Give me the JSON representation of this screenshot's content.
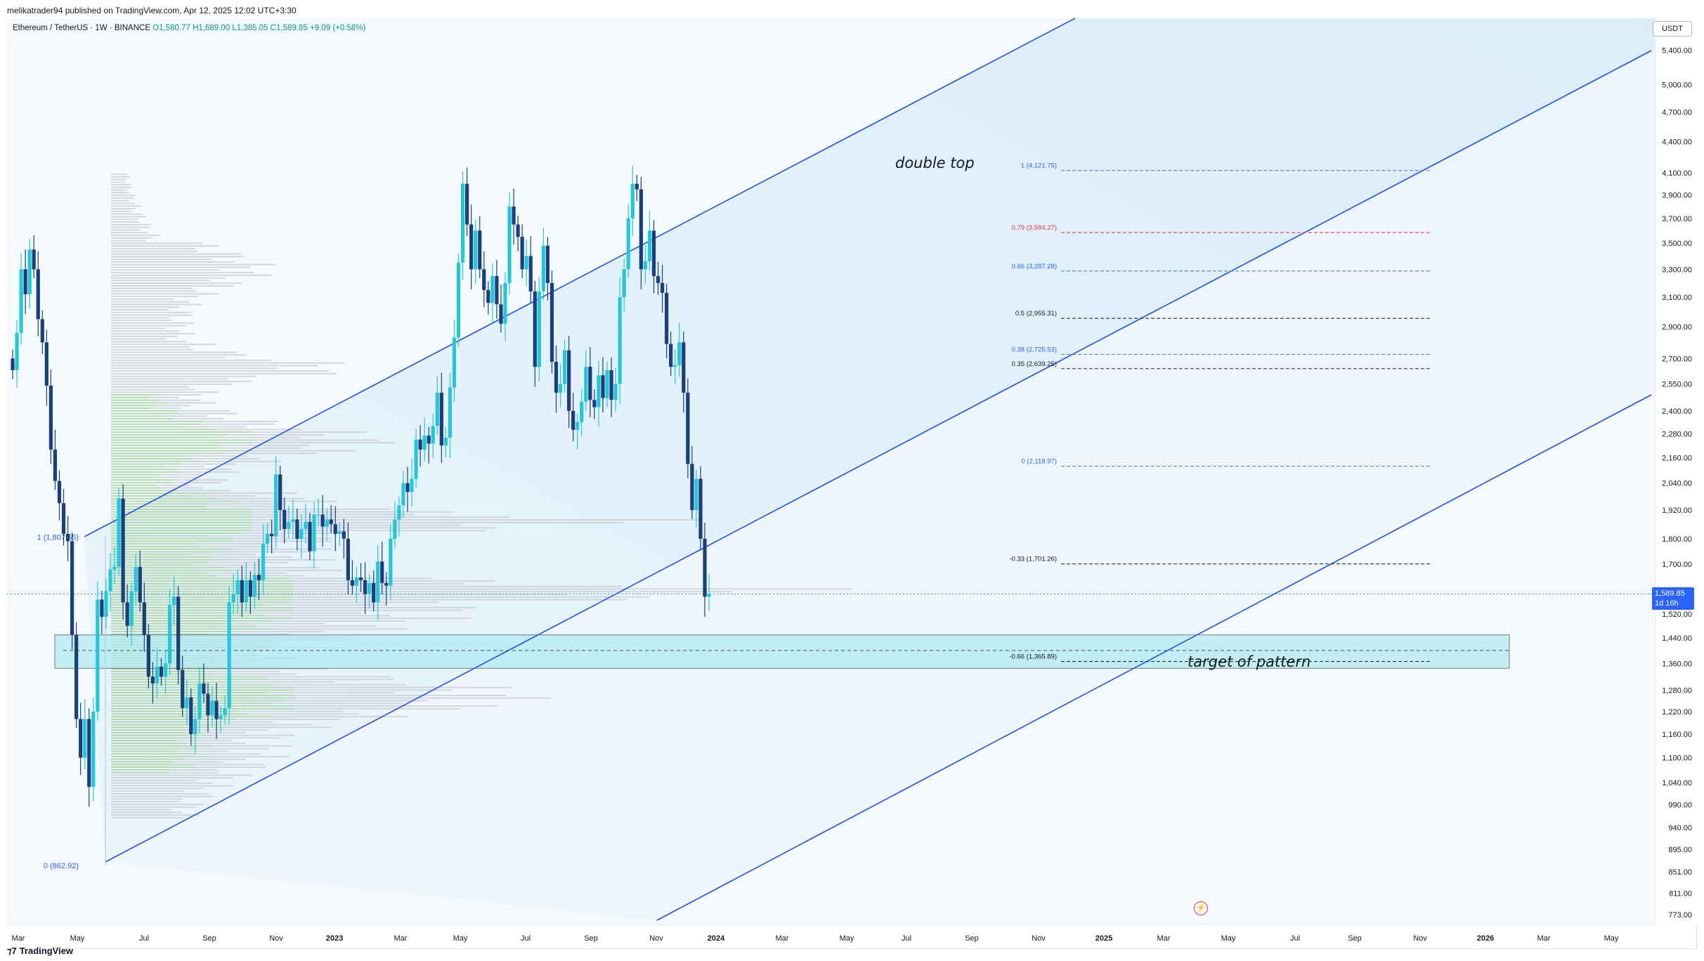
{
  "publisher": "melikatrader94 published on TradingView.com, Apr 12, 2025 12:02 UTC+3:30",
  "symbol": {
    "name": "Ethereum / TetherUS · 1W · BINANCE",
    "open": "O1,580.77",
    "high": "H1,689.00",
    "low": "L1,385.05",
    "close": "C1,589.85",
    "change": "+9.09 (+0.58%)"
  },
  "currency": "USDT",
  "price_badge": {
    "price": "1,589.85",
    "countdown": "1d 16h"
  },
  "annotations": {
    "double_top": "double top",
    "target": "target of pattern"
  },
  "footer": "TradingView",
  "colors": {
    "up": "#26c6da",
    "down": "#1a3f7a",
    "channel": "#1e53e5",
    "zone": "#b2ebf2",
    "fib_red": "#f23645",
    "fib_dark": "#131722"
  },
  "chart_data": {
    "type": "candlestick",
    "scale": "log",
    "ylim": [
      760,
      5600
    ],
    "x_labels": [
      "Mar",
      "May",
      "Jul",
      "Sep",
      "Nov",
      "2023",
      "Mar",
      "May",
      "Jul",
      "Sep",
      "Nov",
      "2024",
      "Mar",
      "May",
      "Jul",
      "Sep",
      "Nov",
      "2025",
      "Mar",
      "May",
      "Jul",
      "Sep",
      "Nov",
      "2026",
      "Mar",
      "May"
    ],
    "y_ticks": [
      "773.00",
      "811.00",
      "851.00",
      "895.00",
      "940.00",
      "990.00",
      "1,040.00",
      "1,100.00",
      "1,160.00",
      "1,220.00",
      "1,280.00",
      "1,360.00",
      "1,440.00",
      "1,520.00",
      "1,600.00",
      "1,700.00",
      "1,800.00",
      "1,920.00",
      "2,040.00",
      "2,160.00",
      "2,280.00",
      "2,400.00",
      "2,550.00",
      "2,700.00",
      "2,900.00",
      "3,100.00",
      "3,300.00",
      "3,500.00",
      "3,700.00",
      "3,900.00",
      "4,100.00",
      "4,400.00",
      "4,700.00",
      "5,000.00",
      "5,400.00"
    ],
    "candles_open_close": [
      [
        2700,
        2630
      ],
      [
        2630,
        2860
      ],
      [
        2860,
        3300
      ],
      [
        3300,
        3120
      ],
      [
        3120,
        3450
      ],
      [
        3450,
        3300
      ],
      [
        3300,
        2950
      ],
      [
        2950,
        2800
      ],
      [
        2800,
        2540
      ],
      [
        2540,
        2200
      ],
      [
        2200,
        2050
      ],
      [
        2050,
        1950
      ],
      [
        1950,
        1820
      ],
      [
        1820,
        1790
      ],
      [
        1790,
        1450
      ],
      [
        1450,
        1200
      ],
      [
        1200,
        1100
      ],
      [
        1100,
        1200
      ],
      [
        1200,
        1030
      ],
      [
        1030,
        1220
      ],
      [
        1220,
        1570
      ],
      [
        1570,
        1510
      ],
      [
        1510,
        1600
      ],
      [
        1600,
        1680
      ],
      [
        1680,
        1690
      ],
      [
        1690,
        1970
      ],
      [
        1970,
        1560
      ],
      [
        1560,
        1480
      ],
      [
        1480,
        1600
      ],
      [
        1600,
        1690
      ],
      [
        1690,
        1560
      ],
      [
        1560,
        1450
      ],
      [
        1450,
        1320
      ],
      [
        1320,
        1300
      ],
      [
        1300,
        1350
      ],
      [
        1350,
        1320
      ],
      [
        1320,
        1360
      ],
      [
        1360,
        1550
      ],
      [
        1550,
        1580
      ],
      [
        1580,
        1340
      ],
      [
        1340,
        1230
      ],
      [
        1230,
        1260
      ],
      [
        1260,
        1160
      ],
      [
        1160,
        1200
      ],
      [
        1200,
        1300
      ],
      [
        1300,
        1270
      ],
      [
        1270,
        1210
      ],
      [
        1210,
        1250
      ],
      [
        1250,
        1200
      ],
      [
        1200,
        1210
      ],
      [
        1210,
        1230
      ],
      [
        1230,
        1560
      ],
      [
        1560,
        1590
      ],
      [
        1590,
        1640
      ],
      [
        1640,
        1560
      ],
      [
        1560,
        1640
      ],
      [
        1640,
        1580
      ],
      [
        1580,
        1660
      ],
      [
        1660,
        1640
      ],
      [
        1640,
        1780
      ],
      [
        1780,
        1820
      ],
      [
        1820,
        1810
      ],
      [
        1810,
        2080
      ],
      [
        2080,
        1920
      ],
      [
        1920,
        1840
      ],
      [
        1840,
        1870
      ],
      [
        1870,
        1880
      ],
      [
        1880,
        1800
      ],
      [
        1800,
        1840
      ],
      [
        1840,
        1870
      ],
      [
        1870,
        1750
      ],
      [
        1750,
        1900
      ],
      [
        1900,
        1900
      ],
      [
        1900,
        1850
      ],
      [
        1850,
        1880
      ],
      [
        1880,
        1860
      ],
      [
        1860,
        1820
      ],
      [
        1820,
        1830
      ],
      [
        1830,
        1800
      ],
      [
        1800,
        1640
      ],
      [
        1640,
        1620
      ],
      [
        1620,
        1650
      ],
      [
        1650,
        1640
      ],
      [
        1640,
        1590
      ],
      [
        1590,
        1630
      ],
      [
        1630,
        1560
      ],
      [
        1560,
        1710
      ],
      [
        1710,
        1630
      ],
      [
        1630,
        1620
      ],
      [
        1620,
        1800
      ],
      [
        1800,
        1880
      ],
      [
        1880,
        1940
      ],
      [
        1940,
        2040
      ],
      [
        2040,
        2000
      ],
      [
        2000,
        2060
      ],
      [
        2060,
        2250
      ],
      [
        2250,
        2200
      ],
      [
        2200,
        2270
      ],
      [
        2270,
        2230
      ],
      [
        2230,
        2320
      ],
      [
        2320,
        2500
      ],
      [
        2500,
        2220
      ],
      [
        2220,
        2260
      ],
      [
        2260,
        2530
      ],
      [
        2530,
        2830
      ],
      [
        2830,
        3350
      ],
      [
        3350,
        4000
      ],
      [
        4000,
        3650
      ],
      [
        3650,
        3300
      ],
      [
        3300,
        3600
      ],
      [
        3600,
        3300
      ],
      [
        3300,
        3150
      ],
      [
        3150,
        3060
      ],
      [
        3060,
        3250
      ],
      [
        3250,
        3050
      ],
      [
        3050,
        2920
      ],
      [
        2920,
        3200
      ],
      [
        3200,
        3800
      ],
      [
        3800,
        3650
      ],
      [
        3650,
        3550
      ],
      [
        3550,
        3300
      ],
      [
        3300,
        3400
      ],
      [
        3400,
        3140
      ],
      [
        3140,
        2650
      ],
      [
        2650,
        3140
      ],
      [
        3140,
        3480
      ],
      [
        3480,
        3200
      ],
      [
        3200,
        2680
      ],
      [
        2680,
        2500
      ],
      [
        2500,
        2550
      ],
      [
        2550,
        2750
      ],
      [
        2750,
        2400
      ],
      [
        2400,
        2300
      ],
      [
        2300,
        2340
      ],
      [
        2340,
        2450
      ],
      [
        2450,
        2650
      ],
      [
        2650,
        2460
      ],
      [
        2460,
        2420
      ],
      [
        2420,
        2600
      ],
      [
        2600,
        2470
      ],
      [
        2470,
        2630
      ],
      [
        2630,
        2460
      ],
      [
        2460,
        2550
      ],
      [
        2550,
        3100
      ],
      [
        3100,
        3300
      ],
      [
        3300,
        3700
      ],
      [
        3700,
        4000
      ],
      [
        4000,
        3950
      ],
      [
        3950,
        3300
      ],
      [
        3300,
        3360
      ],
      [
        3360,
        3600
      ],
      [
        3600,
        3250
      ],
      [
        3250,
        3200
      ],
      [
        3200,
        3130
      ],
      [
        3130,
        2790
      ],
      [
        2790,
        2650
      ],
      [
        2650,
        2660
      ],
      [
        2660,
        2800
      ],
      [
        2800,
        2500
      ],
      [
        2500,
        2130
      ],
      [
        2130,
        1920
      ],
      [
        1920,
        2060
      ],
      [
        2060,
        1800
      ],
      [
        1800,
        1580
      ],
      [
        1580,
        1590
      ]
    ],
    "fibonacci": [
      {
        "level": "1",
        "price": 4121.75
      },
      {
        "level": "0.79",
        "price": 3584.27
      },
      {
        "level": "0.66",
        "price": 3287.28
      },
      {
        "level": "0.5",
        "price": 2955.31
      },
      {
        "level": "0.38",
        "price": 2725.53
      },
      {
        "level": "0.35",
        "price": 2639.25
      },
      {
        "level": "0",
        "price": 2118.97
      },
      {
        "level": "-0.33",
        "price": 1701.26
      },
      {
        "level": "-0.66",
        "price": 1365.89
      }
    ],
    "fib_labels": [
      "1 (4,121.75)",
      "0.79 (3,584.27)",
      "0.66 (3,287.28)",
      "0.5 (2,955.31)",
      "0.38 (2,725.53)",
      "0.35 (2,639.25)",
      "0 (2,118.97)",
      "-0.33 (1,701.26)",
      "-0.66 (1,365.89)"
    ],
    "left_fib": [
      {
        "label": "1 (1,807.55)",
        "price": 1807.55
      },
      {
        "label": "0 (862.92)",
        "price": 862.92
      }
    ],
    "target_zone": [
      1345,
      1450
    ],
    "current_price": 1589.85
  }
}
